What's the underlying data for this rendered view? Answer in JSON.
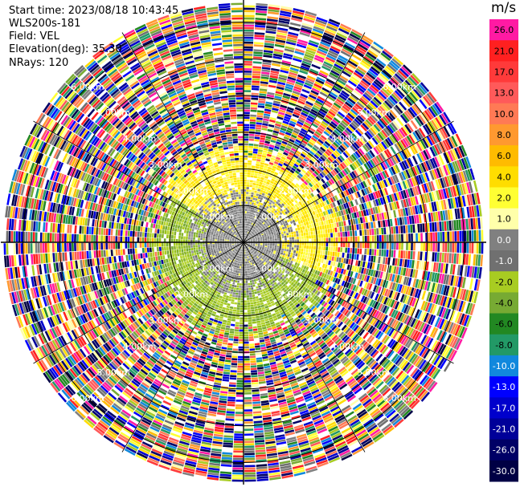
{
  "header": {
    "start_time": "Start time: 2023/08/18 10:43:45",
    "instrument": "WLS200s-181",
    "field": "Field: VEL",
    "elevation": "Elevation(deg): 35.30",
    "nrays": "NRays: 120"
  },
  "colorbar": {
    "unit": "m/s",
    "ticks": [
      "26.0",
      "21.0",
      "17.0",
      "13.0",
      "10.0",
      "8.0",
      "6.0",
      "4.0",
      "2.0",
      "1.0",
      "0.0",
      "-1.0",
      "-2.0",
      "-4.0",
      "-6.0",
      "-8.0",
      "-10.0",
      "-13.0",
      "-17.0",
      "-21.0",
      "-26.0",
      "-30.0"
    ],
    "colors": [
      "#ff1aa3",
      "#ff2020",
      "#ff3a3a",
      "#ff5a5a",
      "#ff7a55",
      "#ff9930",
      "#ffbb00",
      "#ffdd00",
      "#ffff33",
      "#ffffaa",
      "#808080",
      "#707070",
      "#a8cc22",
      "#77aa33",
      "#228822",
      "#229966",
      "#1188dd",
      "#0000ff",
      "#0000cc",
      "#000099",
      "#000066",
      "#000044"
    ]
  },
  "chart_data": {
    "type": "heatmap",
    "subtype": "ppi-polar",
    "field": "VEL",
    "units": "m/s",
    "nrays": 120,
    "elevation_deg": 35.3,
    "range_ring_labels": [
      "1.00km",
      "2.00km",
      "3.00km",
      "4.00km",
      "5.00km",
      "6.00km"
    ],
    "range_rings_km": [
      1,
      2,
      3,
      4,
      5,
      6
    ],
    "max_range_km": 6.6,
    "vmin": -30,
    "vmax": 30,
    "regions": [
      {
        "range_km": [
          0,
          1.0
        ],
        "description_value": "near-zero (grey)"
      },
      {
        "range_km": [
          1.0,
          2.6
        ],
        "description_value": "green (-2..-4) south/west, yellow (+2..+4) north/east"
      },
      {
        "range_km": [
          2.6,
          6.6
        ],
        "description_value": "noise across full color scale"
      }
    ]
  }
}
